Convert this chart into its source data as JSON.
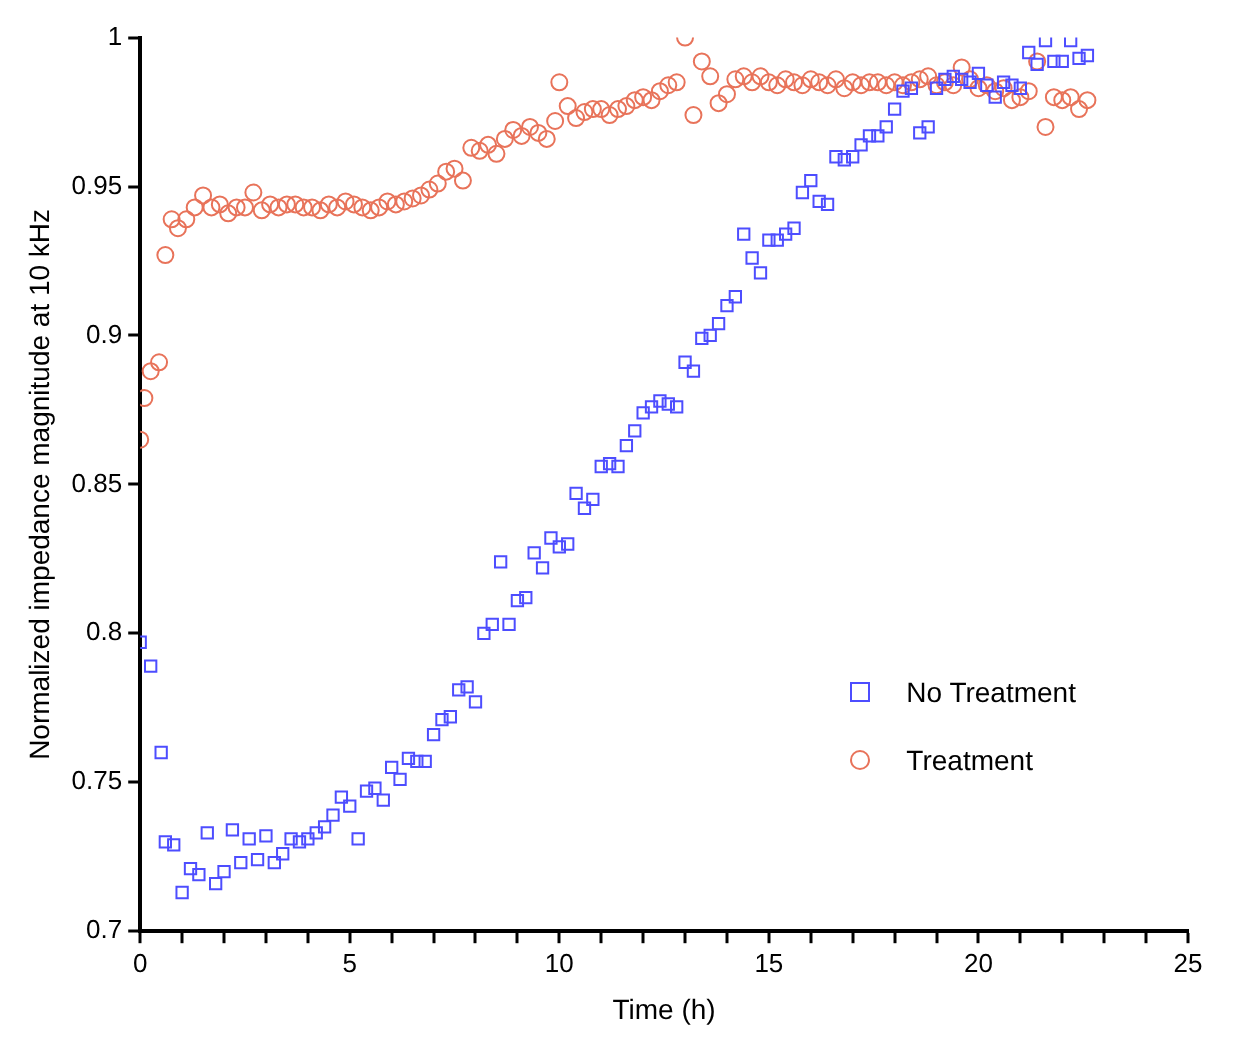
{
  "chart_data": {
    "type": "scatter",
    "xlabel": "Time (h)",
    "ylabel": "Normalized impedance magnitude at 10 kHz",
    "xlim": [
      0,
      25
    ],
    "ylim": [
      0.7,
      1
    ],
    "xticks": [
      0,
      {
        "value": 1,
        "label": null
      },
      {
        "value": 2,
        "label": null
      },
      {
        "value": 3,
        "label": null
      },
      {
        "value": 4,
        "label": null
      },
      5,
      {
        "value": 6,
        "label": null
      },
      {
        "value": 7,
        "label": null
      },
      {
        "value": 8,
        "label": null
      },
      {
        "value": 9,
        "label": null
      },
      10,
      {
        "value": 11,
        "label": null
      },
      {
        "value": 12,
        "label": null
      },
      {
        "value": 13,
        "label": null
      },
      {
        "value": 14,
        "label": null
      },
      15,
      {
        "value": 16,
        "label": null
      },
      {
        "value": 17,
        "label": null
      },
      {
        "value": 18,
        "label": null
      },
      {
        "value": 19,
        "label": null
      },
      20,
      {
        "value": 21,
        "label": null
      },
      {
        "value": 22,
        "label": null
      },
      {
        "value": 23,
        "label": null
      },
      {
        "value": 24,
        "label": null
      },
      25
    ],
    "yticks": [
      0.7,
      0.75,
      0.8,
      0.85,
      0.9,
      0.95,
      1
    ],
    "grid": false,
    "legend": "right",
    "series": [
      {
        "name": "No Treatment",
        "color": "#4d4dff",
        "marker": "square",
        "x": [
          0,
          0.25,
          0.5,
          0.6,
          0.8,
          1.0,
          1.2,
          1.4,
          1.6,
          1.8,
          2.0,
          2.2,
          2.4,
          2.6,
          2.8,
          3.0,
          3.2,
          3.4,
          3.6,
          3.8,
          4.0,
          4.2,
          4.4,
          4.6,
          4.8,
          5.0,
          5.2,
          5.4,
          5.6,
          5.8,
          6.0,
          6.2,
          6.4,
          6.6,
          6.8,
          7.0,
          7.2,
          7.4,
          7.6,
          7.8,
          8.0,
          8.2,
          8.4,
          8.6,
          8.8,
          9.0,
          9.2,
          9.4,
          9.6,
          9.8,
          10.0,
          10.2,
          10.4,
          10.6,
          10.8,
          11.0,
          11.2,
          11.4,
          11.6,
          11.8,
          12.0,
          12.2,
          12.4,
          12.6,
          12.8,
          13.0,
          13.2,
          13.4,
          13.6,
          13.8,
          14.0,
          14.2,
          14.4,
          14.6,
          14.8,
          15.0,
          15.2,
          15.4,
          15.6,
          15.8,
          16.0,
          16.2,
          16.4,
          16.6,
          16.8,
          17.0,
          17.2,
          17.4,
          17.6,
          17.8,
          18.0,
          18.2,
          18.4,
          18.6,
          18.8,
          19.0,
          19.2,
          19.4,
          19.6,
          19.8,
          20.0,
          20.2,
          20.4,
          20.6,
          20.8,
          21.0,
          21.2,
          21.4,
          21.6,
          21.8,
          22.0,
          22.2,
          22.4,
          22.6
        ],
        "values": [
          0.797,
          0.789,
          0.76,
          0.73,
          0.729,
          0.713,
          0.721,
          0.719,
          0.733,
          0.716,
          0.72,
          0.734,
          0.723,
          0.731,
          0.724,
          0.732,
          0.723,
          0.726,
          0.731,
          0.73,
          0.731,
          0.733,
          0.735,
          0.739,
          0.745,
          0.742,
          0.731,
          0.747,
          0.748,
          0.744,
          0.755,
          0.751,
          0.758,
          0.757,
          0.757,
          0.766,
          0.771,
          0.772,
          0.781,
          0.782,
          0.777,
          0.8,
          0.803,
          0.824,
          0.803,
          0.811,
          0.812,
          0.827,
          0.822,
          0.832,
          0.829,
          0.83,
          0.847,
          0.842,
          0.845,
          0.856,
          0.857,
          0.856,
          0.863,
          0.868,
          0.874,
          0.876,
          0.878,
          0.877,
          0.876,
          0.891,
          0.888,
          0.899,
          0.9,
          0.904,
          0.91,
          0.913,
          0.934,
          0.926,
          0.921,
          0.932,
          0.932,
          0.934,
          0.936,
          0.948,
          0.952,
          0.945,
          0.944,
          0.96,
          0.959,
          0.96,
          0.964,
          0.967,
          0.967,
          0.97,
          0.976,
          0.982,
          0.983,
          0.968,
          0.97,
          0.983,
          0.986,
          0.987,
          0.986,
          0.985,
          0.988,
          0.984,
          0.98,
          0.985,
          0.984,
          0.983,
          0.995,
          0.991,
          0.999,
          0.992,
          0.992,
          0.999,
          0.993,
          0.994
        ]
      },
      {
        "name": "Treatment",
        "color": "#e8735a",
        "marker": "circle",
        "x": [
          0,
          0.1,
          0.25,
          0.45,
          0.6,
          0.75,
          0.9,
          1.1,
          1.3,
          1.5,
          1.7,
          1.9,
          2.1,
          2.3,
          2.5,
          2.7,
          2.9,
          3.1,
          3.3,
          3.5,
          3.7,
          3.9,
          4.1,
          4.3,
          4.5,
          4.7,
          4.9,
          5.1,
          5.3,
          5.5,
          5.7,
          5.9,
          6.1,
          6.3,
          6.5,
          6.7,
          6.9,
          7.1,
          7.3,
          7.5,
          7.7,
          7.9,
          8.1,
          8.3,
          8.5,
          8.7,
          8.9,
          9.1,
          9.3,
          9.5,
          9.7,
          9.9,
          10.0,
          10.2,
          10.4,
          10.6,
          10.8,
          11.0,
          11.2,
          11.4,
          11.6,
          11.8,
          12.0,
          12.2,
          12.4,
          12.6,
          12.8,
          13.0,
          13.2,
          13.4,
          13.6,
          13.8,
          14.0,
          14.2,
          14.4,
          14.6,
          14.8,
          15.0,
          15.2,
          15.4,
          15.6,
          15.8,
          16.0,
          16.2,
          16.4,
          16.6,
          16.8,
          17.0,
          17.2,
          17.4,
          17.6,
          17.8,
          18.0,
          18.2,
          18.4,
          18.6,
          18.8,
          19.0,
          19.2,
          19.4,
          19.6,
          19.8,
          20.0,
          20.2,
          20.4,
          20.6,
          20.8,
          21.0,
          21.2,
          21.4,
          21.6,
          21.8,
          22.0,
          22.2,
          22.4,
          22.6
        ],
        "values": [
          0.865,
          0.879,
          0.888,
          0.891,
          0.927,
          0.939,
          0.936,
          0.939,
          0.943,
          0.947,
          0.943,
          0.944,
          0.941,
          0.943,
          0.943,
          0.948,
          0.942,
          0.944,
          0.943,
          0.944,
          0.944,
          0.943,
          0.943,
          0.942,
          0.944,
          0.943,
          0.945,
          0.944,
          0.943,
          0.942,
          0.943,
          0.945,
          0.944,
          0.945,
          0.946,
          0.947,
          0.949,
          0.951,
          0.955,
          0.956,
          0.952,
          0.963,
          0.962,
          0.964,
          0.961,
          0.966,
          0.969,
          0.967,
          0.97,
          0.968,
          0.966,
          0.972,
          0.985,
          0.977,
          0.973,
          0.975,
          0.976,
          0.976,
          0.974,
          0.976,
          0.977,
          0.979,
          0.98,
          0.979,
          0.982,
          0.984,
          0.985,
          1.0,
          0.974,
          0.992,
          0.987,
          0.978,
          0.981,
          0.986,
          0.987,
          0.985,
          0.987,
          0.985,
          0.984,
          0.986,
          0.985,
          0.984,
          0.986,
          0.985,
          0.984,
          0.986,
          0.983,
          0.985,
          0.984,
          0.985,
          0.985,
          0.984,
          0.985,
          0.984,
          0.985,
          0.986,
          0.987,
          0.984,
          0.985,
          0.984,
          0.99,
          0.986,
          0.983,
          0.984,
          0.982,
          0.983,
          0.979,
          0.98,
          0.982,
          0.992,
          0.97,
          0.98,
          0.979,
          0.98,
          0.976,
          0.979
        ]
      }
    ]
  }
}
